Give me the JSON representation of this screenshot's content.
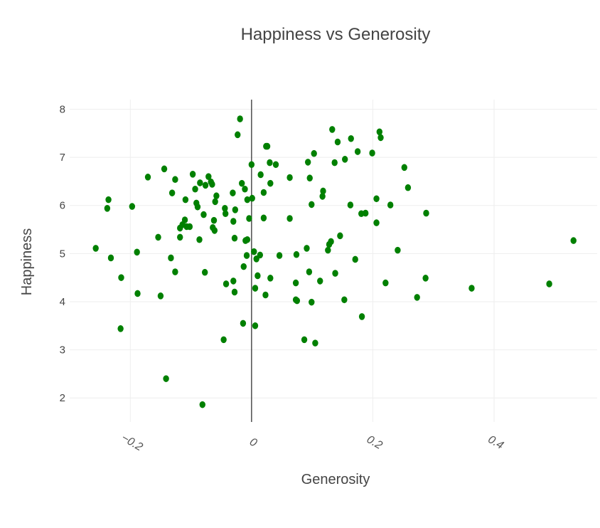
{
  "chart_data": {
    "type": "scatter",
    "title": "Happiness vs Generosity",
    "xlabel": "Generosity",
    "ylabel": "Happiness",
    "xlim": [
      -0.3,
      0.57
    ],
    "ylim": [
      1.5,
      8.2
    ],
    "xticks": [
      -0.2,
      0,
      0.2,
      0.4
    ],
    "xtick_labels": [
      "−0.2",
      "0",
      "0.2",
      "0.4"
    ],
    "yticks": [
      2,
      3,
      4,
      5,
      6,
      7,
      8
    ],
    "ytick_labels": [
      "2",
      "3",
      "4",
      "5",
      "6",
      "7",
      "8"
    ],
    "grid": true,
    "marker_color": "#008000",
    "points": [
      {
        "x": -0.019,
        "y": 7.8
      },
      {
        "x": -0.023,
        "y": 7.47
      },
      {
        "x": 0.024,
        "y": 7.23
      },
      {
        "x": 0.026,
        "y": 7.23
      },
      {
        "x": 0.133,
        "y": 7.58
      },
      {
        "x": 0.211,
        "y": 7.53
      },
      {
        "x": 0.213,
        "y": 7.41
      },
      {
        "x": 0.164,
        "y": 7.39
      },
      {
        "x": 0.142,
        "y": 7.32
      },
      {
        "x": 0.175,
        "y": 7.12
      },
      {
        "x": 0.199,
        "y": 7.09
      },
      {
        "x": 0.103,
        "y": 7.08
      },
      {
        "x": 0.154,
        "y": 6.96
      },
      {
        "x": 0.137,
        "y": 6.89
      },
      {
        "x": 0.093,
        "y": 6.9
      },
      {
        "x": 0.03,
        "y": 6.89
      },
      {
        "x": 0.04,
        "y": 6.85
      },
      {
        "x": 0.0,
        "y": 6.85
      },
      {
        "x": 0.015,
        "y": 6.64
      },
      {
        "x": 0.063,
        "y": 6.58
      },
      {
        "x": 0.096,
        "y": 6.57
      },
      {
        "x": 0.252,
        "y": 6.79
      },
      {
        "x": 0.258,
        "y": 6.37
      },
      {
        "x": -0.144,
        "y": 6.76
      },
      {
        "x": -0.126,
        "y": 6.54
      },
      {
        "x": -0.171,
        "y": 6.59
      },
      {
        "x": -0.097,
        "y": 6.65
      },
      {
        "x": -0.071,
        "y": 6.6
      },
      {
        "x": -0.067,
        "y": 6.49
      },
      {
        "x": -0.085,
        "y": 6.47
      },
      {
        "x": -0.076,
        "y": 6.42
      },
      {
        "x": -0.065,
        "y": 6.44
      },
      {
        "x": -0.016,
        "y": 6.46
      },
      {
        "x": -0.011,
        "y": 6.34
      },
      {
        "x": 0.02,
        "y": 6.27
      },
      {
        "x": 0.031,
        "y": 6.46
      },
      {
        "x": -0.093,
        "y": 6.34
      },
      {
        "x": -0.131,
        "y": 6.26
      },
      {
        "x": -0.058,
        "y": 6.2
      },
      {
        "x": -0.06,
        "y": 6.08
      },
      {
        "x": -0.031,
        "y": 6.26
      },
      {
        "x": 0.001,
        "y": 6.15
      },
      {
        "x": -0.007,
        "y": 6.12
      },
      {
        "x": -0.109,
        "y": 6.12
      },
      {
        "x": -0.091,
        "y": 6.05
      },
      {
        "x": -0.089,
        "y": 5.97
      },
      {
        "x": -0.044,
        "y": 5.94
      },
      {
        "x": -0.027,
        "y": 5.91
      },
      {
        "x": -0.043,
        "y": 5.83
      },
      {
        "x": -0.079,
        "y": 5.81
      },
      {
        "x": 0.118,
        "y": 6.3
      },
      {
        "x": 0.117,
        "y": 6.19
      },
      {
        "x": 0.206,
        "y": 6.14
      },
      {
        "x": 0.163,
        "y": 6.01
      },
      {
        "x": 0.229,
        "y": 6.01
      },
      {
        "x": 0.099,
        "y": 6.02
      },
      {
        "x": 0.181,
        "y": 5.83
      },
      {
        "x": 0.188,
        "y": 5.84
      },
      {
        "x": 0.288,
        "y": 5.84
      },
      {
        "x": 0.206,
        "y": 5.64
      },
      {
        "x": -0.236,
        "y": 6.12
      },
      {
        "x": -0.238,
        "y": 5.94
      },
      {
        "x": -0.197,
        "y": 5.98
      },
      {
        "x": -0.062,
        "y": 5.69
      },
      {
        "x": -0.064,
        "y": 5.54
      },
      {
        "x": -0.061,
        "y": 5.48
      },
      {
        "x": -0.03,
        "y": 5.67
      },
      {
        "x": -0.028,
        "y": 5.32
      },
      {
        "x": -0.11,
        "y": 5.7
      },
      {
        "x": -0.114,
        "y": 5.6
      },
      {
        "x": -0.107,
        "y": 5.56
      },
      {
        "x": -0.118,
        "y": 5.53
      },
      {
        "x": -0.102,
        "y": 5.56
      },
      {
        "x": -0.118,
        "y": 5.34
      },
      {
        "x": -0.154,
        "y": 5.34
      },
      {
        "x": -0.086,
        "y": 5.29
      },
      {
        "x": -0.004,
        "y": 5.73
      },
      {
        "x": 0.02,
        "y": 5.74
      },
      {
        "x": 0.063,
        "y": 5.73
      },
      {
        "x": 0.146,
        "y": 5.37
      },
      {
        "x": 0.131,
        "y": 5.25
      },
      {
        "x": 0.128,
        "y": 5.19
      },
      {
        "x": 0.126,
        "y": 5.07
      },
      {
        "x": 0.091,
        "y": 5.11
      },
      {
        "x": 0.241,
        "y": 5.07
      },
      {
        "x": 0.171,
        "y": 4.88
      },
      {
        "x": -0.007,
        "y": 5.29
      },
      {
        "x": -0.01,
        "y": 5.27
      },
      {
        "x": 0.004,
        "y": 5.04
      },
      {
        "x": -0.008,
        "y": 4.96
      },
      {
        "x": 0.014,
        "y": 4.97
      },
      {
        "x": 0.008,
        "y": 4.89
      },
      {
        "x": 0.046,
        "y": 4.96
      },
      {
        "x": 0.074,
        "y": 4.98
      },
      {
        "x": -0.257,
        "y": 5.11
      },
      {
        "x": -0.232,
        "y": 4.91
      },
      {
        "x": -0.189,
        "y": 5.03
      },
      {
        "x": -0.133,
        "y": 4.91
      },
      {
        "x": -0.013,
        "y": 4.73
      },
      {
        "x": 0.095,
        "y": 4.62
      },
      {
        "x": 0.138,
        "y": 4.59
      },
      {
        "x": 0.01,
        "y": 4.54
      },
      {
        "x": 0.031,
        "y": 4.49
      },
      {
        "x": -0.126,
        "y": 4.62
      },
      {
        "x": -0.077,
        "y": 4.61
      },
      {
        "x": -0.215,
        "y": 4.5
      },
      {
        "x": -0.03,
        "y": 4.43
      },
      {
        "x": -0.042,
        "y": 4.37
      },
      {
        "x": 0.113,
        "y": 4.43
      },
      {
        "x": 0.221,
        "y": 4.39
      },
      {
        "x": 0.287,
        "y": 4.49
      },
      {
        "x": 0.073,
        "y": 4.39
      },
      {
        "x": 0.006,
        "y": 4.28
      },
      {
        "x": -0.028,
        "y": 4.2
      },
      {
        "x": -0.188,
        "y": 4.17
      },
      {
        "x": -0.15,
        "y": 4.12
      },
      {
        "x": 0.023,
        "y": 4.14
      },
      {
        "x": 0.073,
        "y": 4.04
      },
      {
        "x": 0.075,
        "y": 4.02
      },
      {
        "x": 0.099,
        "y": 3.99
      },
      {
        "x": 0.153,
        "y": 4.04
      },
      {
        "x": 0.273,
        "y": 4.09
      },
      {
        "x": 0.363,
        "y": 4.28
      },
      {
        "x": 0.491,
        "y": 4.37
      },
      {
        "x": 0.531,
        "y": 5.27
      },
      {
        "x": 0.182,
        "y": 3.69
      },
      {
        "x": -0.014,
        "y": 3.55
      },
      {
        "x": 0.006,
        "y": 3.5
      },
      {
        "x": -0.216,
        "y": 3.44
      },
      {
        "x": -0.046,
        "y": 3.21
      },
      {
        "x": 0.087,
        "y": 3.21
      },
      {
        "x": 0.105,
        "y": 3.14
      },
      {
        "x": -0.141,
        "y": 2.4
      },
      {
        "x": -0.081,
        "y": 1.86
      }
    ]
  }
}
